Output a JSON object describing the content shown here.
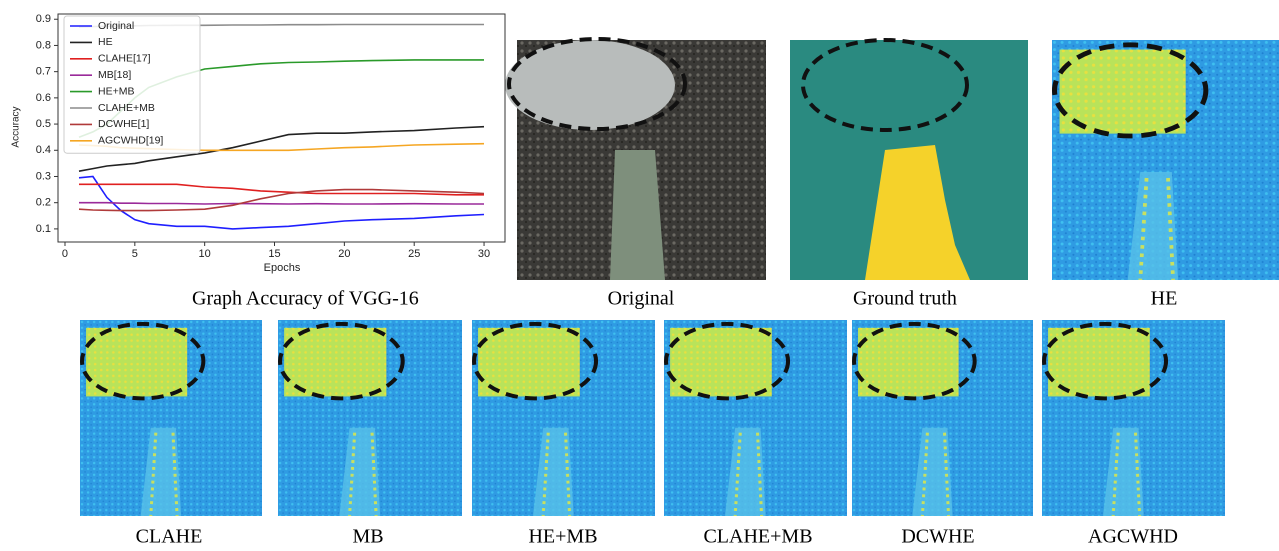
{
  "chart_data": {
    "type": "line",
    "x_label": "Epochs",
    "y_label": "Accuracy",
    "x": [
      1,
      2,
      3,
      4,
      5,
      6,
      8,
      10,
      12,
      14,
      16,
      18,
      20,
      22,
      25,
      28,
      30
    ],
    "xlim": [
      -0.5,
      31.5
    ],
    "xticks": [
      0,
      5,
      10,
      15,
      20,
      25,
      30
    ],
    "ylim": [
      0.05,
      0.92
    ],
    "yticks": [
      0.1,
      0.2,
      0.3,
      0.4,
      0.5,
      0.6,
      0.7,
      0.8,
      0.9
    ],
    "legend": "upper left",
    "series": [
      {
        "name": "Original",
        "color": "#1f1fff",
        "values": [
          0.295,
          0.3,
          0.22,
          0.17,
          0.135,
          0.12,
          0.11,
          0.11,
          0.1,
          0.105,
          0.11,
          0.12,
          0.13,
          0.135,
          0.14,
          0.15,
          0.155
        ]
      },
      {
        "name": "HE",
        "color": "#222222",
        "values": [
          0.32,
          0.33,
          0.34,
          0.345,
          0.35,
          0.36,
          0.375,
          0.39,
          0.41,
          0.435,
          0.46,
          0.465,
          0.465,
          0.47,
          0.475,
          0.485,
          0.49
        ]
      },
      {
        "name": "CLAHE[17]",
        "color": "#e02020",
        "values": [
          0.27,
          0.27,
          0.27,
          0.27,
          0.27,
          0.27,
          0.27,
          0.26,
          0.255,
          0.245,
          0.24,
          0.235,
          0.235,
          0.235,
          0.235,
          0.23,
          0.23
        ]
      },
      {
        "name": "MB[18]",
        "color": "#9a2a9a",
        "values": [
          0.2,
          0.2,
          0.2,
          0.198,
          0.198,
          0.197,
          0.197,
          0.195,
          0.197,
          0.196,
          0.195,
          0.196,
          0.195,
          0.195,
          0.196,
          0.195,
          0.195
        ]
      },
      {
        "name": "HE+MB",
        "color": "#2a9a2a",
        "values": [
          0.45,
          0.47,
          0.5,
          0.55,
          0.6,
          0.64,
          0.68,
          0.71,
          0.72,
          0.73,
          0.735,
          0.737,
          0.74,
          0.742,
          0.745,
          0.745,
          0.745
        ]
      },
      {
        "name": "CLAHE+MB",
        "color": "#8c8c8c",
        "values": [
          0.87,
          0.872,
          0.873,
          0.874,
          0.875,
          0.876,
          0.877,
          0.877,
          0.878,
          0.878,
          0.879,
          0.879,
          0.88,
          0.88,
          0.88,
          0.88,
          0.88
        ]
      },
      {
        "name": "DCWHE[1]",
        "color": "#b03a3a",
        "values": [
          0.175,
          0.172,
          0.171,
          0.17,
          0.17,
          0.17,
          0.172,
          0.175,
          0.19,
          0.215,
          0.235,
          0.245,
          0.25,
          0.25,
          0.245,
          0.24,
          0.235
        ]
      },
      {
        "name": "AGCWHD[19]",
        "color": "#f5a623",
        "values": [
          0.42,
          0.418,
          0.415,
          0.41,
          0.408,
          0.406,
          0.403,
          0.4,
          0.4,
          0.4,
          0.4,
          0.405,
          0.41,
          0.413,
          0.42,
          0.423,
          0.425
        ]
      }
    ]
  },
  "figure": {
    "captions": [
      "Graph Accuracy of VGG-16",
      "Original",
      "Ground truth",
      "HE",
      "CLAHE",
      "MB",
      "HE+MB",
      "CLAHE+MB",
      "DCWHE",
      "AGCWHD"
    ]
  }
}
